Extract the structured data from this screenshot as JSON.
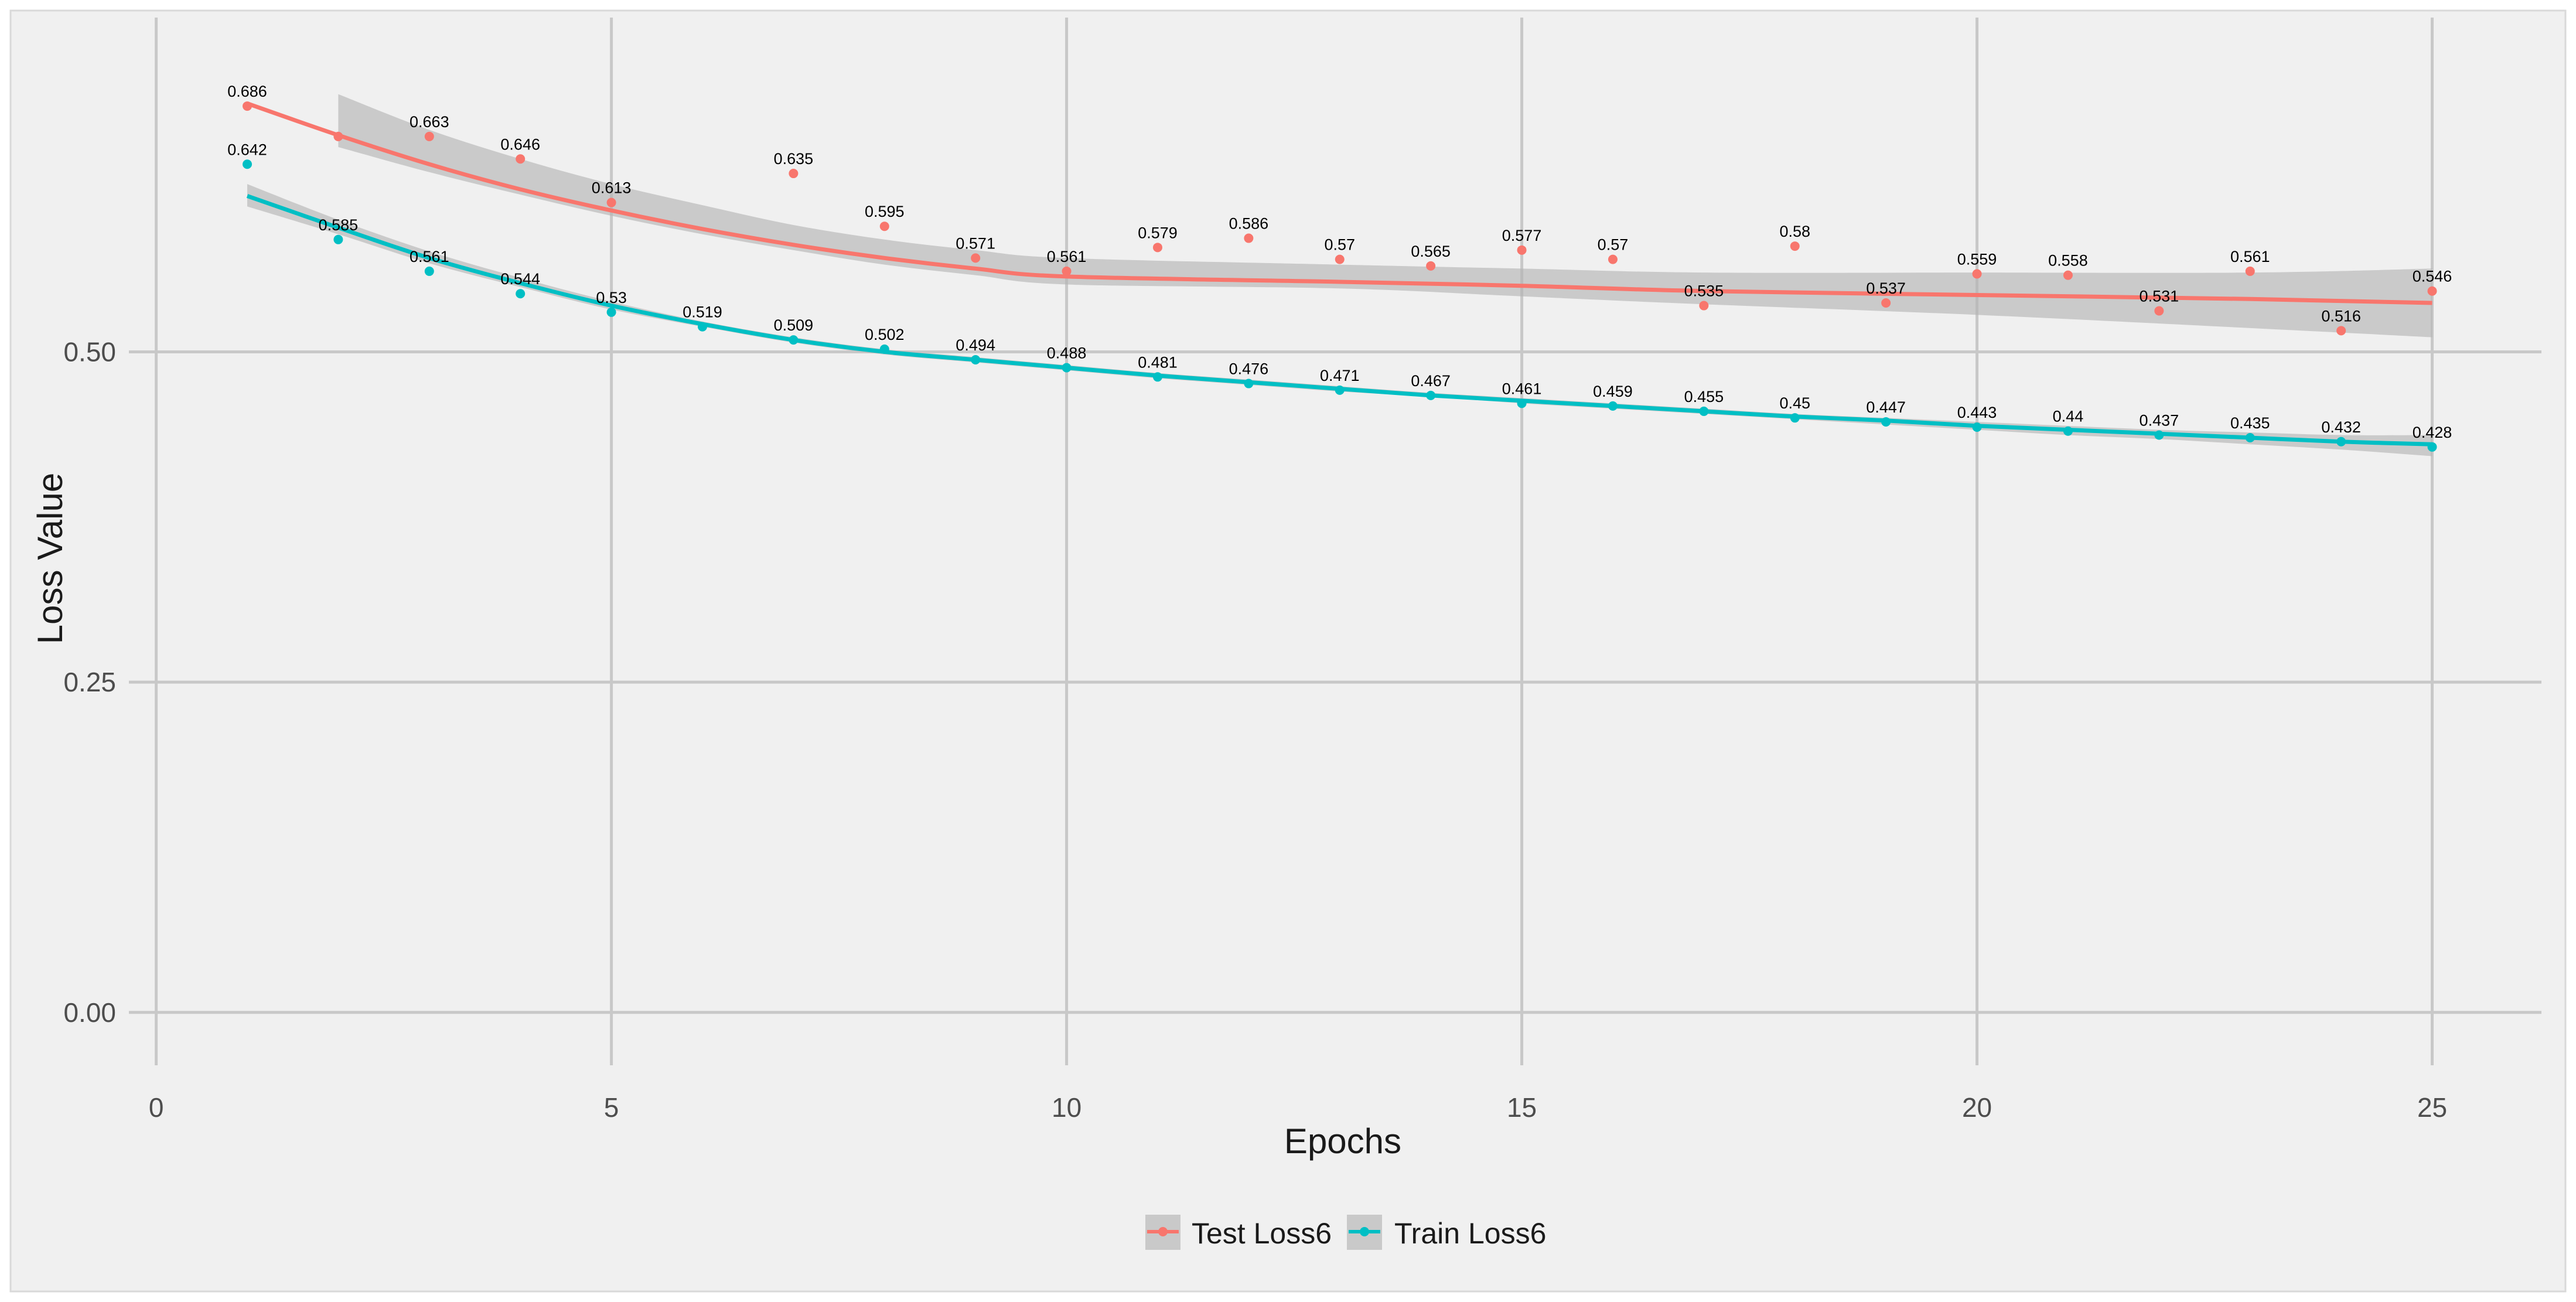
{
  "chart_data": {
    "type": "line",
    "title": "",
    "xlabel": "Epochs",
    "ylabel": "Loss Value",
    "xlim": [
      -0.3,
      26.2
    ],
    "ylim": [
      -0.04,
      0.753
    ],
    "x_ticks": [
      0,
      5,
      10,
      15,
      20,
      25
    ],
    "x_tick_labels": [
      "0",
      "5",
      "10",
      "15",
      "20",
      "25"
    ],
    "y_ticks": [
      0.0,
      0.25,
      0.5
    ],
    "y_tick_labels": [
      "0.00",
      "0.25",
      "0.50"
    ],
    "grid": true,
    "legend_position": "bottom",
    "x": [
      1,
      2,
      3,
      4,
      5,
      6,
      7,
      8,
      9,
      10,
      11,
      12,
      13,
      14,
      15,
      16,
      17,
      18,
      19,
      20,
      21,
      22,
      23,
      24,
      25
    ],
    "series": [
      {
        "name": "Test Loss6",
        "color": "#f8766d",
        "values": [
          0.686,
          0.663,
          0.663,
          0.646,
          0.613,
          0.613,
          0.635,
          0.595,
          0.571,
          0.561,
          0.579,
          0.586,
          0.57,
          0.565,
          0.577,
          0.57,
          0.535,
          0.58,
          0.537,
          0.559,
          0.558,
          0.531,
          0.561,
          0.516,
          0.546
        ],
        "labels": [
          "0.686",
          "",
          "0.663",
          "0.646",
          "0.613",
          "",
          "0.635",
          "0.595",
          "0.571",
          "0.561",
          "0.579",
          "0.586",
          "0.57",
          "0.565",
          "0.577",
          "0.57",
          "0.535",
          "0.58",
          "0.537",
          "0.559",
          "0.558",
          "0.531",
          "0.561",
          "0.516",
          "0.546"
        ],
        "fit": [
          0.688,
          0.664,
          0.642,
          0.623,
          0.607,
          0.593,
          0.581,
          0.571,
          0.563,
          0.557,
          0.553,
          0.55,
          0.546,
          0.543,
          0.54,
          0.537
        ],
        "fit_x": [
          1,
          2,
          3,
          4,
          5,
          6,
          7,
          8,
          9,
          10,
          13,
          15,
          17,
          20,
          23,
          25
        ],
        "band_lower": [
          null,
          0.655,
          0.636,
          0.619,
          0.603,
          0.589,
          0.577,
          0.566,
          0.558,
          0.551,
          0.548,
          0.542,
          0.536,
          0.528,
          0.518,
          0.511
        ],
        "band_upper": [
          null,
          0.695,
          0.668,
          0.646,
          0.627,
          0.611,
          0.596,
          0.585,
          0.577,
          0.571,
          0.566,
          0.563,
          0.56,
          0.56,
          0.56,
          0.563
        ]
      },
      {
        "name": "Train Loss6",
        "color": "#00bfc4",
        "values": [
          0.642,
          0.585,
          0.561,
          0.544,
          0.53,
          0.519,
          0.509,
          0.502,
          0.494,
          0.488,
          0.481,
          0.476,
          0.471,
          0.467,
          0.461,
          0.459,
          0.455,
          0.45,
          0.447,
          0.443,
          0.44,
          0.437,
          0.435,
          0.432,
          0.428
        ],
        "labels": [
          "0.642",
          "0.585",
          "0.561",
          "0.544",
          "0.53",
          "0.519",
          "0.509",
          "0.502",
          "0.494",
          "0.488",
          "0.481",
          "0.476",
          "0.471",
          "0.467",
          "0.461",
          "0.459",
          "0.455",
          "0.45",
          "0.447",
          "0.443",
          "0.44",
          "0.437",
          "0.435",
          "0.432",
          "0.428"
        ],
        "fit": [
          0.618,
          0.594,
          0.571,
          0.552,
          0.535,
          0.521,
          0.509,
          0.5,
          0.494,
          0.488,
          0.482,
          0.477,
          0.472,
          0.467,
          0.463,
          0.459,
          0.455,
          0.451,
          0.448,
          0.444,
          0.441,
          0.438,
          0.435,
          0.432,
          0.43
        ],
        "fit_x": [
          1,
          2,
          3,
          4,
          5,
          6,
          7,
          8,
          9,
          10,
          11,
          12,
          13,
          14,
          15,
          16,
          17,
          18,
          19,
          20,
          21,
          22,
          23,
          24,
          25
        ],
        "band_lower": [
          0.61,
          0.589,
          0.567,
          0.549,
          0.532,
          0.519,
          0.507,
          0.498,
          0.492,
          0.486,
          0.48,
          0.475,
          0.47,
          0.466,
          0.461,
          0.457,
          0.453,
          0.449,
          0.445,
          0.441,
          0.437,
          0.434,
          0.43,
          0.426,
          0.421
        ],
        "band_upper": [
          0.627,
          0.6,
          0.576,
          0.556,
          0.538,
          0.523,
          0.511,
          0.502,
          0.496,
          0.49,
          0.484,
          0.479,
          0.474,
          0.469,
          0.465,
          0.461,
          0.457,
          0.453,
          0.45,
          0.447,
          0.444,
          0.441,
          0.439,
          0.437,
          0.437
        ]
      }
    ]
  },
  "colors": {
    "panel_background": "#ededed",
    "grid": "#c8c8c8",
    "band": "#b3b3b3",
    "page_border": "#d9d9d9"
  }
}
